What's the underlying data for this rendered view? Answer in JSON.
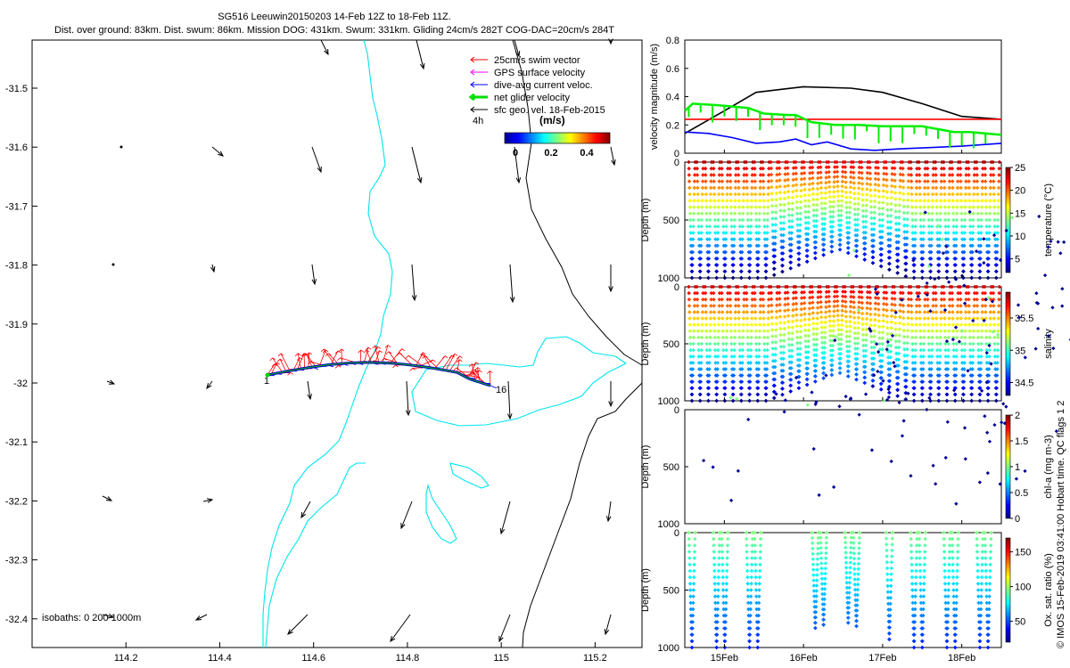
{
  "header": {
    "title_line1": "SG516 Leeuwin20150203 14-Feb 12Z to 18-Feb 11Z.",
    "title_line2": "Dist. over ground: 83km. Dist. swum: 86km. Mission DOG: 431km. Swum: 331km. Gliding 24cm/s 282T COG-DAC=20cm/s 284T"
  },
  "side_note": "© IMOS 15-Feb-2019 03:41:00 Hobart time. QC flags 1  2",
  "map": {
    "x_ticks": [
      "114.2",
      "114.4",
      "114.6",
      "114.8",
      "115",
      "115.2"
    ],
    "y_ticks": [
      "-31.5",
      "-31.6",
      "-31.7",
      "-31.8",
      "-31.9",
      "-32",
      "-32.1",
      "-32.2",
      "-32.3",
      "-32.4"
    ],
    "legend": [
      {
        "label": "25cm/s swim vector",
        "color": "#ff0000"
      },
      {
        "label": "GPS surface velocity",
        "color": "#ff00ff"
      },
      {
        "label": "dive-avg current veloc.",
        "color": "#0000ff"
      },
      {
        "label": "net glider velocity",
        "color": "#00dd00"
      },
      {
        "label": "sfc geo. vel. 18-Feb-2015",
        "color": "#000000"
      }
    ],
    "colorbar_label_left": "4h",
    "colorbar_unit": "(m/s)",
    "colorbar_ticks": [
      "0",
      "0.2",
      "0.4"
    ],
    "track_start_label": "1",
    "track_end_label": "16",
    "isobath_label": "isobaths: 0   200   1000m",
    "coast_color": "#00e5ee",
    "isobath_color": "#000000"
  },
  "chart_data": [
    {
      "type": "line",
      "ylabel": "velocity magnitude (m/s)",
      "ylim": [
        0,
        0.8
      ],
      "y_ticks": [
        "0",
        "0.2",
        "0.4",
        "0.6",
        "0.8"
      ],
      "x_ticks": [
        "15Feb",
        "16Feb",
        "17Feb",
        "18Feb"
      ],
      "series": [
        {
          "color": "#000000",
          "x": [
            14.5,
            15.0,
            15.4,
            16.0,
            16.6,
            17.0,
            17.5,
            18.0,
            18.5
          ],
          "y": [
            0.14,
            0.3,
            0.43,
            0.47,
            0.46,
            0.43,
            0.35,
            0.26,
            0.24
          ]
        },
        {
          "color": "#ff0000",
          "x": [
            14.5,
            18.5
          ],
          "y": [
            0.24,
            0.24
          ]
        },
        {
          "color": "#00ee00",
          "x": [
            14.5,
            14.6,
            14.9,
            15.3,
            15.5,
            15.8,
            15.9,
            16.1,
            16.4,
            16.7,
            17.0,
            17.5,
            17.9,
            18.1,
            18.5
          ],
          "y": [
            0.3,
            0.35,
            0.34,
            0.32,
            0.28,
            0.27,
            0.27,
            0.22,
            0.2,
            0.2,
            0.19,
            0.19,
            0.15,
            0.15,
            0.13
          ]
        },
        {
          "color": "#0000ff",
          "x": [
            14.5,
            14.8,
            15.1,
            15.4,
            15.7,
            15.9,
            16.1,
            16.3,
            16.6,
            16.9,
            17.2,
            17.6,
            18.0,
            18.5
          ],
          "y": [
            0.15,
            0.14,
            0.11,
            0.07,
            0.08,
            0.1,
            0.06,
            0.08,
            0.03,
            0.02,
            0.03,
            0.04,
            0.05,
            0.07
          ]
        }
      ]
    },
    {
      "type": "scatter",
      "ylabel": "Depth (m)",
      "colorbar_label": "temperature (°C)",
      "y_ticks": [
        "0",
        "500",
        "1000"
      ],
      "colorbar_ticks": [
        "5",
        "10",
        "15",
        "20",
        "25"
      ],
      "clim": [
        2,
        25
      ]
    },
    {
      "type": "scatter",
      "ylabel": "Depth (m)",
      "colorbar_label": "salinity",
      "y_ticks": [
        "0",
        "500",
        "1000"
      ],
      "colorbar_ticks": [
        "34.5",
        "35",
        "35.5"
      ],
      "clim": [
        34.3,
        35.9
      ]
    },
    {
      "type": "scatter",
      "ylabel": "Depth (m)",
      "colorbar_label": "chl-a (mg m-3)",
      "y_ticks": [
        "0",
        "500",
        "1000"
      ],
      "colorbar_ticks": [
        "0",
        "0.5",
        "1",
        "1.5",
        "2"
      ],
      "clim": [
        0,
        2
      ]
    },
    {
      "type": "scatter",
      "ylabel": "Depth (m)",
      "colorbar_label": "Ox. sat. ratio (%)",
      "y_ticks": [
        "0",
        "500",
        "1000"
      ],
      "colorbar_ticks": [
        "50",
        "100",
        "150"
      ],
      "clim": [
        20,
        170
      ]
    }
  ]
}
